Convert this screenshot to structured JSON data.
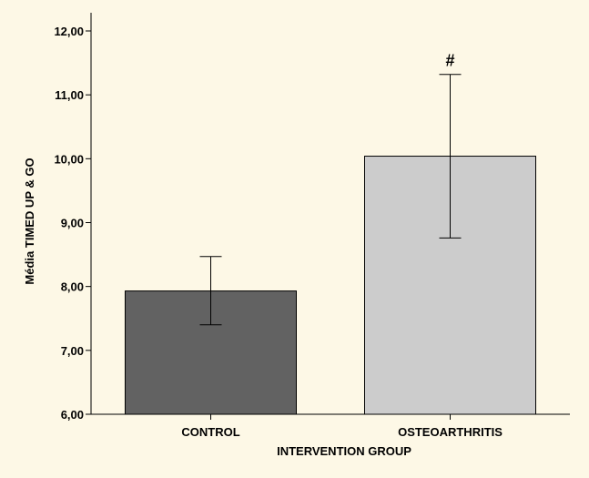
{
  "chart_data": {
    "type": "bar",
    "categories": [
      "CONTROL",
      "OSTEOARTHRITIS"
    ],
    "values": [
      7.93,
      10.04
    ],
    "error_bars": {
      "lower": [
        7.4,
        8.76
      ],
      "upper": [
        8.47,
        11.32
      ]
    },
    "bar_colors": [
      "#626262",
      "#cccccc"
    ],
    "annotations": [
      {
        "category": "OSTEOARTHRITIS",
        "text": "#"
      }
    ],
    "xlabel": "INTERVENTION GROUP",
    "ylabel": "Média TIMED UP & GO",
    "ylim": [
      6,
      12
    ],
    "yticks": [
      6,
      7,
      8,
      9,
      10,
      11,
      12
    ],
    "ytick_labels": [
      "6,00",
      "7,00",
      "8,00",
      "9,00",
      "10,00",
      "11,00",
      "12,00"
    ],
    "grid": false,
    "background": "#fdf8e6"
  }
}
